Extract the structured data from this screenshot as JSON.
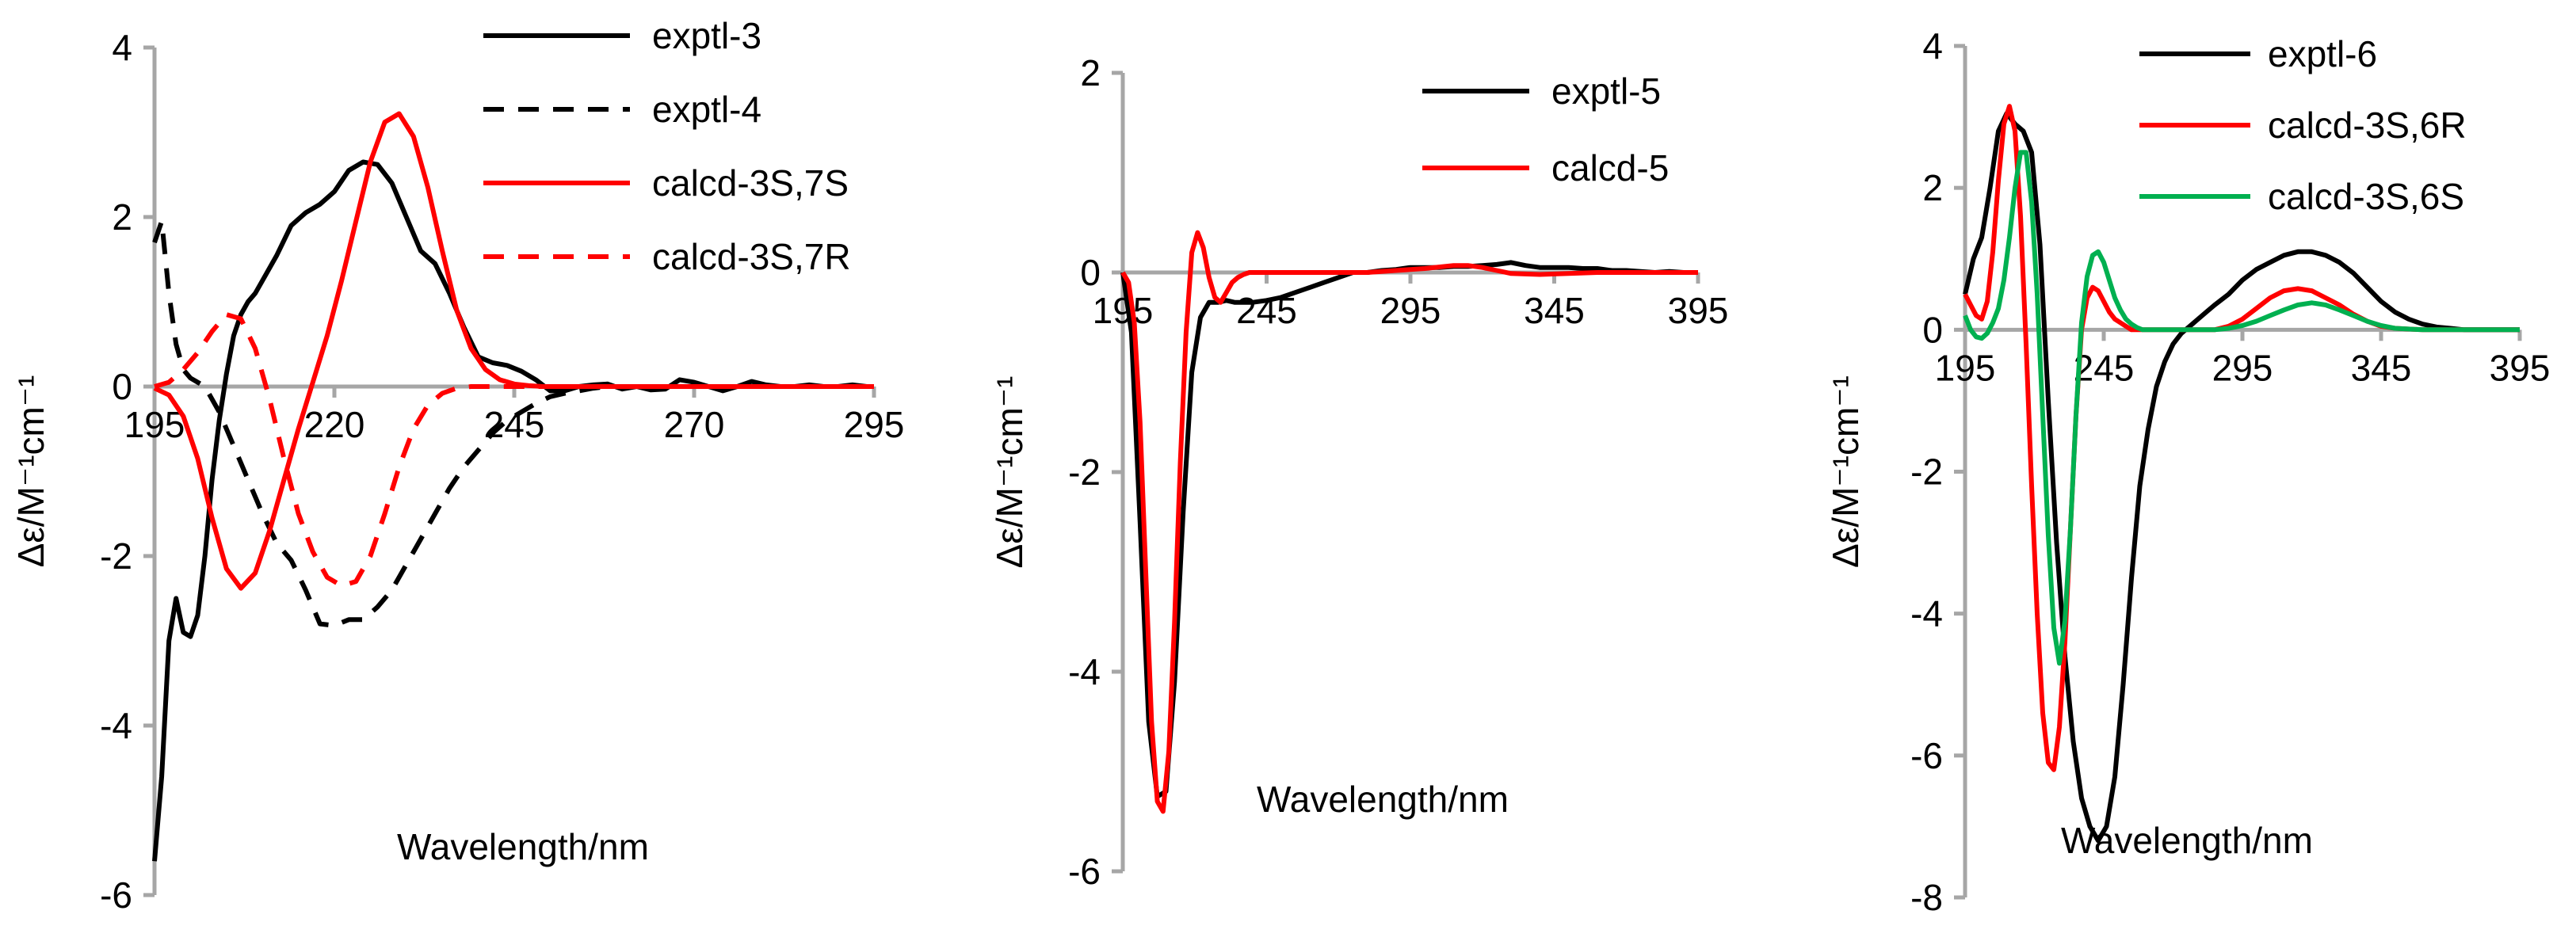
{
  "chart_data": [
    {
      "type": "line",
      "xlabel": "Wavelength/nm",
      "ylabel": "Δε/M⁻¹cm⁻¹",
      "xlim": [
        195,
        295
      ],
      "ylim": [
        -6,
        4
      ],
      "xticks": [
        195,
        220,
        245,
        270,
        295
      ],
      "yticks": [
        -6,
        -4,
        -2,
        0,
        2,
        4
      ],
      "grid": false,
      "legend_position": "top-right",
      "series": [
        {
          "name": "exptl-3",
          "color": "#000000",
          "dash": "solid",
          "x": [
            195,
            196,
            197,
            198,
            199,
            200,
            201,
            202,
            203,
            204,
            205,
            206,
            207,
            208,
            209,
            210,
            212,
            214,
            216,
            218,
            220,
            222,
            224,
            226,
            228,
            230,
            232,
            234,
            236,
            238,
            240,
            242,
            244,
            246,
            248,
            250,
            252,
            254,
            256,
            258,
            260,
            262,
            264,
            266,
            268,
            270,
            272,
            274,
            276,
            278,
            280,
            282,
            284,
            286,
            288,
            290,
            292,
            294,
            295
          ],
          "y": [
            -5.6,
            -4.6,
            -3.0,
            -2.5,
            -2.9,
            -2.95,
            -2.7,
            -2.0,
            -1.1,
            -0.4,
            0.15,
            0.6,
            0.85,
            1.0,
            1.1,
            1.25,
            1.55,
            1.9,
            2.05,
            2.15,
            2.3,
            2.55,
            2.65,
            2.62,
            2.4,
            2.0,
            1.6,
            1.45,
            1.1,
            0.7,
            0.35,
            0.28,
            0.25,
            0.18,
            0.08,
            -0.05,
            -0.05,
            0.0,
            0.02,
            0.03,
            -0.03,
            0.0,
            -0.04,
            -0.03,
            0.08,
            0.05,
            0.0,
            -0.05,
            0.0,
            0.06,
            0.02,
            0.0,
            0.0,
            0.02,
            0.0,
            0.0,
            0.02,
            0.0,
            0.0
          ]
        },
        {
          "name": "exptl-4",
          "color": "#000000",
          "dash": "dashed",
          "x": [
            195,
            196,
            197,
            198,
            199,
            200,
            201,
            202,
            204,
            206,
            208,
            210,
            212,
            214,
            216,
            218,
            220,
            222,
            224,
            226,
            228,
            230,
            232,
            234,
            236,
            238,
            240,
            242,
            244,
            246,
            248,
            250,
            252,
            254,
            256,
            258,
            260,
            265,
            270,
            275,
            280,
            285,
            290,
            295
          ],
          "y": [
            1.7,
            1.95,
            1.1,
            0.5,
            0.2,
            0.1,
            0.05,
            0.0,
            -0.3,
            -0.7,
            -1.1,
            -1.5,
            -1.85,
            -2.05,
            -2.4,
            -2.8,
            -2.82,
            -2.75,
            -2.75,
            -2.6,
            -2.4,
            -2.1,
            -1.8,
            -1.5,
            -1.2,
            -0.95,
            -0.75,
            -0.55,
            -0.4,
            -0.3,
            -0.2,
            -0.12,
            -0.08,
            -0.05,
            -0.02,
            0.0,
            0.0,
            0.0,
            0.0,
            0.0,
            0.0,
            0.0,
            0.0,
            0.0
          ]
        },
        {
          "name": "calcd-3S,7S",
          "color": "#ff0000",
          "dash": "solid",
          "x": [
            195,
            197,
            199,
            201,
            203,
            205,
            207,
            209,
            211,
            213,
            215,
            217,
            219,
            221,
            223,
            225,
            227,
            229,
            231,
            233,
            235,
            237,
            239,
            241,
            243,
            245,
            247,
            249,
            251,
            255,
            260,
            270,
            280,
            295
          ],
          "y": [
            -0.02,
            -0.1,
            -0.35,
            -0.85,
            -1.55,
            -2.15,
            -2.38,
            -2.2,
            -1.7,
            -1.1,
            -0.5,
            0.05,
            0.6,
            1.25,
            1.95,
            2.65,
            3.12,
            3.22,
            2.95,
            2.35,
            1.6,
            0.9,
            0.45,
            0.2,
            0.08,
            0.03,
            0.01,
            0.0,
            0.0,
            0.0,
            0.0,
            0.0,
            0.0,
            0.0
          ]
        },
        {
          "name": "calcd-3S,7R",
          "color": "#ff0000",
          "dash": "dashed",
          "x": [
            195,
            197,
            199,
            201,
            203,
            205,
            207,
            209,
            211,
            213,
            215,
            217,
            219,
            221,
            223,
            225,
            227,
            229,
            231,
            233,
            235,
            237,
            239,
            241,
            243,
            245,
            247,
            249,
            251,
            255,
            260,
            270,
            280,
            295
          ],
          "y": [
            0.0,
            0.05,
            0.2,
            0.4,
            0.65,
            0.85,
            0.8,
            0.45,
            -0.15,
            -0.85,
            -1.5,
            -1.95,
            -2.25,
            -2.35,
            -2.3,
            -2.0,
            -1.5,
            -0.95,
            -0.5,
            -0.22,
            -0.08,
            -0.02,
            0.0,
            0.0,
            0.0,
            0.0,
            0.0,
            0.0,
            0.0,
            0.0,
            0.0,
            0.0,
            0.0,
            0.0
          ]
        }
      ]
    },
    {
      "type": "line",
      "xlabel": "Wavelength/nm",
      "ylabel": "Δε/M⁻¹cm⁻¹",
      "xlim": [
        195,
        395
      ],
      "ylim": [
        -6,
        2
      ],
      "xticks": [
        195,
        245,
        295,
        345,
        395
      ],
      "yticks": [
        -6,
        -4,
        -2,
        0,
        2
      ],
      "grid": false,
      "legend_position": "top-right",
      "series": [
        {
          "name": "exptl-5",
          "color": "#000000",
          "dash": "solid",
          "x": [
            195,
            198,
            201,
            204,
            207,
            210,
            213,
            216,
            219,
            222,
            225,
            228,
            231,
            234,
            237,
            240,
            245,
            250,
            255,
            260,
            265,
            270,
            275,
            280,
            285,
            290,
            295,
            300,
            305,
            310,
            315,
            320,
            325,
            330,
            335,
            340,
            345,
            350,
            355,
            360,
            365,
            370,
            375,
            380,
            385,
            390,
            395
          ],
          "y": [
            0.0,
            -0.6,
            -2.5,
            -4.5,
            -5.25,
            -5.2,
            -4.1,
            -2.4,
            -1.0,
            -0.45,
            -0.3,
            -0.3,
            -0.28,
            -0.3,
            -0.3,
            -0.3,
            -0.28,
            -0.25,
            -0.2,
            -0.15,
            -0.1,
            -0.05,
            0.0,
            0.0,
            0.02,
            0.03,
            0.05,
            0.05,
            0.05,
            0.06,
            0.06,
            0.07,
            0.08,
            0.1,
            0.07,
            0.05,
            0.05,
            0.05,
            0.04,
            0.04,
            0.02,
            0.02,
            0.01,
            0.0,
            0.01,
            0.0,
            0.0
          ]
        },
        {
          "name": "calcd-5",
          "color": "#ff0000",
          "dash": "solid",
          "x": [
            195,
            197,
            199,
            201,
            203,
            205,
            207,
            209,
            211,
            213,
            215,
            217,
            219,
            221,
            223,
            225,
            227,
            229,
            231,
            233,
            235,
            237,
            239,
            241,
            243,
            245,
            250,
            255,
            260,
            270,
            280,
            290,
            300,
            310,
            315,
            320,
            325,
            330,
            340,
            350,
            360,
            370,
            380,
            395
          ],
          "y": [
            0.0,
            -0.1,
            -0.5,
            -1.5,
            -3.0,
            -4.5,
            -5.3,
            -5.4,
            -4.8,
            -3.5,
            -1.9,
            -0.6,
            0.2,
            0.4,
            0.25,
            -0.05,
            -0.25,
            -0.3,
            -0.2,
            -0.1,
            -0.05,
            -0.02,
            0.0,
            0.0,
            0.0,
            0.0,
            0.0,
            0.0,
            0.0,
            0.0,
            0.0,
            0.02,
            0.04,
            0.07,
            0.07,
            0.05,
            0.02,
            -0.01,
            -0.02,
            -0.01,
            0.0,
            0.0,
            0.0,
            0.0
          ]
        }
      ]
    },
    {
      "type": "line",
      "xlabel": "Wavelength/nm",
      "ylabel": "Δε/M⁻¹cm⁻¹",
      "xlim": [
        195,
        395
      ],
      "ylim": [
        -8,
        4
      ],
      "xticks": [
        195,
        245,
        295,
        345,
        395
      ],
      "yticks": [
        -8,
        -6,
        -4,
        -2,
        0,
        2,
        4
      ],
      "grid": false,
      "legend_position": "top-right",
      "series": [
        {
          "name": "exptl-6",
          "color": "#000000",
          "dash": "solid",
          "x": [
            195,
            198,
            201,
            204,
            207,
            210,
            213,
            216,
            219,
            222,
            225,
            228,
            231,
            234,
            237,
            240,
            243,
            246,
            249,
            252,
            255,
            258,
            261,
            264,
            267,
            270,
            273,
            276,
            279,
            282,
            285,
            290,
            295,
            300,
            305,
            310,
            315,
            320,
            325,
            330,
            335,
            340,
            345,
            350,
            355,
            360,
            365,
            370,
            375,
            380,
            385,
            390,
            395
          ],
          "y": [
            0.5,
            1.0,
            1.3,
            2.0,
            2.8,
            3.05,
            2.9,
            2.8,
            2.5,
            1.2,
            -1.0,
            -3.0,
            -4.6,
            -5.8,
            -6.6,
            -7.0,
            -7.2,
            -7.0,
            -6.3,
            -5.0,
            -3.5,
            -2.2,
            -1.4,
            -0.8,
            -0.45,
            -0.2,
            -0.05,
            0.05,
            0.15,
            0.25,
            0.35,
            0.5,
            0.7,
            0.85,
            0.95,
            1.05,
            1.1,
            1.1,
            1.05,
            0.95,
            0.8,
            0.6,
            0.4,
            0.25,
            0.15,
            0.08,
            0.04,
            0.02,
            0.0,
            0.0,
            0.0,
            0.0,
            0.0
          ]
        },
        {
          "name": "calcd-3S,6R",
          "color": "#ff0000",
          "dash": "solid",
          "x": [
            195,
            197,
            199,
            201,
            203,
            205,
            207,
            209,
            211,
            213,
            215,
            217,
            219,
            221,
            223,
            225,
            227,
            229,
            231,
            233,
            235,
            237,
            239,
            241,
            243,
            245,
            247,
            249,
            251,
            253,
            255,
            257,
            259,
            261,
            263,
            265,
            267,
            269,
            271,
            273,
            275,
            277,
            279,
            281,
            283,
            285,
            290,
            295,
            300,
            305,
            310,
            315,
            320,
            325,
            330,
            335,
            340,
            345,
            350,
            360,
            370,
            380,
            395
          ],
          "y": [
            0.5,
            0.35,
            0.2,
            0.15,
            0.4,
            1.1,
            2.1,
            2.9,
            3.15,
            2.8,
            1.6,
            -0.2,
            -2.2,
            -4.0,
            -5.4,
            -6.1,
            -6.2,
            -5.6,
            -4.4,
            -2.8,
            -1.2,
            0.0,
            0.45,
            0.6,
            0.55,
            0.4,
            0.25,
            0.15,
            0.1,
            0.05,
            0.0,
            0.0,
            0.0,
            0.0,
            0.0,
            0.0,
            0.0,
            0.0,
            0.0,
            0.0,
            0.0,
            0.0,
            0.0,
            0.0,
            0.0,
            0.0,
            0.05,
            0.15,
            0.3,
            0.45,
            0.55,
            0.58,
            0.55,
            0.45,
            0.35,
            0.22,
            0.12,
            0.05,
            0.02,
            0.0,
            0.0,
            0.0,
            0.0
          ]
        },
        {
          "name": "calcd-3S,6S",
          "color": "#00b050",
          "dash": "solid",
          "x": [
            195,
            197,
            199,
            201,
            203,
            205,
            207,
            209,
            211,
            213,
            215,
            217,
            219,
            221,
            223,
            225,
            227,
            229,
            231,
            233,
            235,
            237,
            239,
            241,
            243,
            245,
            247,
            249,
            251,
            253,
            255,
            257,
            259,
            261,
            263,
            265,
            267,
            269,
            271,
            275,
            280,
            285,
            290,
            295,
            300,
            305,
            310,
            315,
            320,
            325,
            330,
            335,
            340,
            345,
            350,
            360,
            370,
            380,
            395
          ],
          "y": [
            0.2,
            0.0,
            -0.1,
            -0.12,
            -0.05,
            0.1,
            0.3,
            0.7,
            1.3,
            2.0,
            2.5,
            2.5,
            1.8,
            0.5,
            -1.2,
            -2.9,
            -4.2,
            -4.7,
            -4.1,
            -2.8,
            -1.2,
            0.1,
            0.75,
            1.05,
            1.1,
            0.95,
            0.7,
            0.45,
            0.28,
            0.15,
            0.08,
            0.03,
            0.0,
            0.0,
            0.0,
            0.0,
            0.0,
            0.0,
            0.0,
            0.0,
            0.0,
            0.0,
            0.02,
            0.06,
            0.12,
            0.2,
            0.28,
            0.35,
            0.38,
            0.35,
            0.28,
            0.2,
            0.12,
            0.06,
            0.02,
            0.0,
            0.0,
            0.0,
            0.0
          ]
        }
      ]
    }
  ]
}
